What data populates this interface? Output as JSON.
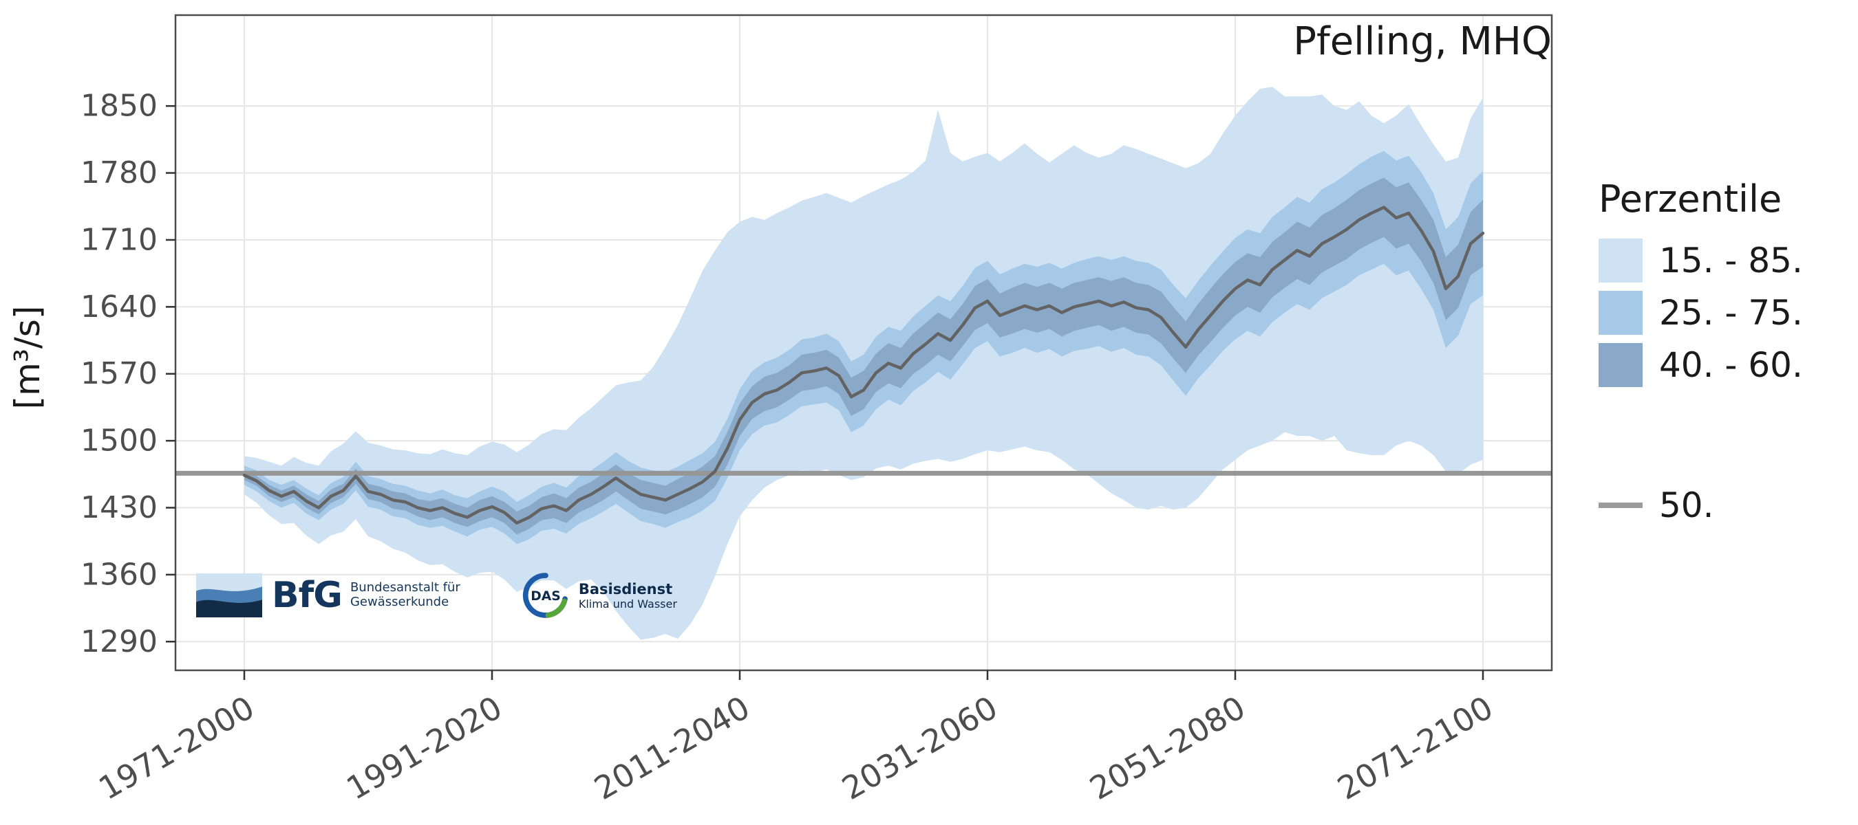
{
  "chart_data": {
    "type": "area",
    "title": "Pfelling, MHQ",
    "xlabel": "",
    "ylabel": "[m³/s]",
    "legend_title": "Perzentile",
    "legend_position": "right",
    "grid": true,
    "ylim": [
      1260,
      1945
    ],
    "y_ticks": [
      1290,
      1360,
      1430,
      1500,
      1570,
      1640,
      1710,
      1780,
      1850
    ],
    "x_tick_years": [
      1971,
      1991,
      2011,
      2031,
      2051,
      2071
    ],
    "x_tick_labels": [
      "1971-2000",
      "1991-2020",
      "2011-2040",
      "2031-2060",
      "2051-2080",
      "2071-2100"
    ],
    "x_years": [
      1971,
      1972,
      1973,
      1974,
      1975,
      1976,
      1977,
      1978,
      1979,
      1980,
      1981,
      1982,
      1983,
      1984,
      1985,
      1986,
      1987,
      1988,
      1989,
      1990,
      1991,
      1992,
      1993,
      1994,
      1995,
      1996,
      1997,
      1998,
      1999,
      2000,
      2001,
      2002,
      2003,
      2004,
      2005,
      2006,
      2007,
      2008,
      2009,
      2010,
      2011,
      2012,
      2013,
      2014,
      2015,
      2016,
      2017,
      2018,
      2019,
      2020,
      2021,
      2022,
      2023,
      2024,
      2025,
      2026,
      2027,
      2028,
      2029,
      2030,
      2031,
      2032,
      2033,
      2034,
      2035,
      2036,
      2037,
      2038,
      2039,
      2040,
      2041,
      2042,
      2043,
      2044,
      2045,
      2046,
      2047,
      2048,
      2049,
      2050,
      2051,
      2052,
      2053,
      2054,
      2055,
      2056,
      2057,
      2058,
      2059,
      2060,
      2061,
      2062,
      2063,
      2064,
      2065,
      2066,
      2067,
      2068,
      2069,
      2070,
      2071
    ],
    "window_length_years": 30,
    "bands": [
      {
        "label": "15. - 85.",
        "lower": "p15",
        "upper": "p85",
        "color": "#cfe2f4"
      },
      {
        "label": "25. - 75.",
        "lower": "p25",
        "upper": "p75",
        "color": "#a6c9e8"
      },
      {
        "label": "40. - 60.",
        "lower": "p40",
        "upper": "p60",
        "color": "#8aa8c7"
      }
    ],
    "median": {
      "label": "50.",
      "series": "p50",
      "color": "#636363",
      "legend_color": "#9b9b9b"
    },
    "reference_line": {
      "value": 1466,
      "color": "#969696"
    },
    "grid_color": "#e7e7e7",
    "panel_border_color": "#4d4d4d",
    "tick_label_color": "#4d4d4d",
    "series": [
      {
        "name": "p15",
        "values": [
          1444,
          1435,
          1422,
          1413,
          1414,
          1401,
          1392,
          1401,
          1405,
          1418,
          1400,
          1395,
          1387,
          1383,
          1375,
          1370,
          1371,
          1363,
          1357,
          1362,
          1363,
          1355,
          1342,
          1347,
          1354,
          1354,
          1345,
          1353,
          1355,
          1342,
          1322,
          1306,
          1292,
          1294,
          1298,
          1293,
          1308,
          1329,
          1358,
          1392,
          1421,
          1438,
          1451,
          1459,
          1464,
          1469,
          1467,
          1470,
          1464,
          1459,
          1462,
          1471,
          1474,
          1470,
          1476,
          1479,
          1481,
          1478,
          1481,
          1486,
          1490,
          1488,
          1491,
          1494,
          1490,
          1488,
          1480,
          1470,
          1465,
          1455,
          1445,
          1438,
          1430,
          1428,
          1432,
          1428,
          1430,
          1440,
          1455,
          1470,
          1480,
          1490,
          1495,
          1500,
          1509,
          1505,
          1505,
          1500,
          1505,
          1490,
          1487,
          1485,
          1485,
          1495,
          1500,
          1495,
          1485,
          1468,
          1465,
          1475,
          1480
        ]
      },
      {
        "name": "p25",
        "values": [
          1454,
          1447,
          1437,
          1430,
          1435,
          1424,
          1417,
          1428,
          1434,
          1448,
          1431,
          1428,
          1421,
          1419,
          1412,
          1409,
          1411,
          1405,
          1400,
          1407,
          1410,
          1403,
          1392,
          1397,
          1406,
          1408,
          1403,
          1413,
          1419,
          1426,
          1434,
          1425,
          1416,
          1413,
          1409,
          1415,
          1420,
          1427,
          1437,
          1461,
          1490,
          1507,
          1516,
          1519,
          1527,
          1536,
          1538,
          1540,
          1532,
          1509,
          1516,
          1533,
          1543,
          1537,
          1552,
          1561,
          1572,
          1564,
          1580,
          1597,
          1604,
          1588,
          1592,
          1597,
          1592,
          1596,
          1588,
          1594,
          1596,
          1599,
          1593,
          1597,
          1590,
          1588,
          1579,
          1563,
          1547,
          1565,
          1579,
          1594,
          1606,
          1615,
          1609,
          1624,
          1634,
          1643,
          1637,
          1649,
          1656,
          1663,
          1673,
          1679,
          1685,
          1673,
          1678,
          1659,
          1637,
          1597,
          1610,
          1643,
          1652
        ]
      },
      {
        "name": "p40",
        "values": [
          1459,
          1453,
          1442,
          1436,
          1441,
          1430,
          1423,
          1435,
          1441,
          1455,
          1439,
          1436,
          1429,
          1427,
          1421,
          1417,
          1420,
          1414,
          1410,
          1416,
          1420,
          1414,
          1402,
          1408,
          1417,
          1419,
          1414,
          1425,
          1431,
          1438,
          1447,
          1438,
          1429,
          1426,
          1423,
          1428,
          1434,
          1441,
          1452,
          1475,
          1505,
          1523,
          1531,
          1535,
          1543,
          1552,
          1554,
          1557,
          1549,
          1526,
          1533,
          1551,
          1560,
          1555,
          1570,
          1579,
          1590,
          1583,
          1599,
          1616,
          1623,
          1608,
          1612,
          1617,
          1613,
          1617,
          1609,
          1615,
          1618,
          1621,
          1615,
          1619,
          1613,
          1611,
          1602,
          1586,
          1571,
          1589,
          1603,
          1618,
          1631,
          1640,
          1634,
          1650,
          1660,
          1669,
          1663,
          1676,
          1683,
          1690,
          1700,
          1707,
          1713,
          1701,
          1706,
          1688,
          1665,
          1626,
          1639,
          1673,
          1682
        ]
      },
      {
        "name": "p50",
        "values": [
          1464,
          1458,
          1448,
          1442,
          1447,
          1437,
          1430,
          1442,
          1448,
          1463,
          1447,
          1444,
          1438,
          1436,
          1430,
          1427,
          1430,
          1424,
          1420,
          1427,
          1431,
          1425,
          1414,
          1420,
          1429,
          1432,
          1427,
          1438,
          1444,
          1452,
          1461,
          1452,
          1444,
          1441,
          1438,
          1444,
          1450,
          1457,
          1468,
          1492,
          1522,
          1540,
          1549,
          1553,
          1561,
          1571,
          1573,
          1576,
          1568,
          1546,
          1553,
          1571,
          1581,
          1576,
          1591,
          1601,
          1612,
          1605,
          1621,
          1639,
          1646,
          1631,
          1636,
          1641,
          1637,
          1641,
          1634,
          1640,
          1643,
          1646,
          1641,
          1645,
          1639,
          1637,
          1629,
          1613,
          1598,
          1616,
          1631,
          1646,
          1659,
          1668,
          1663,
          1679,
          1689,
          1699,
          1693,
          1706,
          1713,
          1721,
          1731,
          1738,
          1744,
          1733,
          1738,
          1720,
          1698,
          1659,
          1672,
          1706,
          1717
        ]
      },
      {
        "name": "p60",
        "values": [
          1469,
          1463,
          1454,
          1448,
          1453,
          1444,
          1437,
          1449,
          1455,
          1471,
          1455,
          1452,
          1447,
          1445,
          1439,
          1437,
          1440,
          1434,
          1430,
          1438,
          1442,
          1436,
          1426,
          1432,
          1441,
          1445,
          1440,
          1451,
          1457,
          1466,
          1475,
          1466,
          1459,
          1456,
          1453,
          1460,
          1466,
          1473,
          1484,
          1509,
          1539,
          1557,
          1567,
          1571,
          1579,
          1590,
          1592,
          1595,
          1587,
          1566,
          1573,
          1591,
          1602,
          1597,
          1612,
          1623,
          1634,
          1627,
          1643,
          1662,
          1669,
          1654,
          1660,
          1665,
          1661,
          1665,
          1659,
          1665,
          1668,
          1671,
          1667,
          1671,
          1665,
          1663,
          1656,
          1640,
          1625,
          1643,
          1659,
          1674,
          1687,
          1696,
          1692,
          1708,
          1718,
          1729,
          1723,
          1736,
          1743,
          1752,
          1762,
          1769,
          1775,
          1765,
          1770,
          1752,
          1731,
          1692,
          1705,
          1739,
          1752
        ]
      },
      {
        "name": "p75",
        "values": [
          1474,
          1469,
          1459,
          1454,
          1459,
          1450,
          1443,
          1456,
          1462,
          1478,
          1463,
          1460,
          1455,
          1453,
          1448,
          1445,
          1449,
          1443,
          1440,
          1447,
          1452,
          1447,
          1436,
          1443,
          1452,
          1456,
          1451,
          1463,
          1469,
          1478,
          1488,
          1479,
          1472,
          1469,
          1467,
          1473,
          1480,
          1487,
          1499,
          1523,
          1554,
          1573,
          1582,
          1587,
          1595,
          1606,
          1608,
          1612,
          1604,
          1583,
          1590,
          1609,
          1619,
          1615,
          1630,
          1641,
          1652,
          1646,
          1662,
          1681,
          1688,
          1674,
          1680,
          1685,
          1682,
          1686,
          1680,
          1686,
          1690,
          1693,
          1689,
          1693,
          1688,
          1686,
          1679,
          1663,
          1649,
          1667,
          1683,
          1698,
          1712,
          1721,
          1717,
          1734,
          1744,
          1755,
          1749,
          1763,
          1770,
          1779,
          1789,
          1797,
          1803,
          1793,
          1798,
          1781,
          1759,
          1721,
          1734,
          1769,
          1782
        ]
      },
      {
        "name": "p85",
        "values": [
          1484,
          1482,
          1478,
          1474,
          1483,
          1477,
          1474,
          1489,
          1497,
          1510,
          1498,
          1495,
          1491,
          1490,
          1487,
          1486,
          1491,
          1487,
          1485,
          1494,
          1499,
          1496,
          1488,
          1496,
          1507,
          1512,
          1511,
          1524,
          1534,
          1546,
          1558,
          1561,
          1563,
          1577,
          1598,
          1621,
          1649,
          1678,
          1699,
          1718,
          1729,
          1734,
          1731,
          1738,
          1744,
          1751,
          1755,
          1759,
          1754,
          1749,
          1756,
          1762,
          1768,
          1773,
          1781,
          1793,
          1846,
          1801,
          1792,
          1797,
          1801,
          1792,
          1801,
          1811,
          1800,
          1791,
          1800,
          1809,
          1801,
          1796,
          1800,
          1809,
          1805,
          1800,
          1795,
          1790,
          1785,
          1790,
          1800,
          1821,
          1840,
          1855,
          1868,
          1870,
          1860,
          1860,
          1860,
          1862,
          1850,
          1846,
          1855,
          1840,
          1832,
          1840,
          1852,
          1830,
          1810,
          1792,
          1796,
          1837,
          1859
        ]
      }
    ]
  },
  "logos": {
    "bfg": {
      "name": "BfG",
      "line1": "Bundesanstalt für",
      "line2": "Gewässerkunde"
    },
    "das": {
      "name": "DAS",
      "line1": "Basisdienst",
      "line2": "Klima und Wasser"
    }
  }
}
